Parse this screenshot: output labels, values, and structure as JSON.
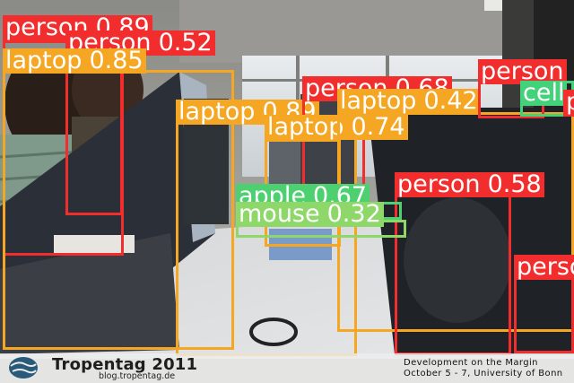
{
  "detections": [
    {
      "cls": "person",
      "conf": "0.89",
      "color": "#f22d2d",
      "kind": "person"
    },
    {
      "cls": "person",
      "conf": "0.52",
      "color": "#f22d2d",
      "kind": "person"
    },
    {
      "cls": "laptop",
      "conf": "0.85",
      "color": "#f5a623",
      "kind": "laptop"
    },
    {
      "cls": "laptop",
      "conf": "0.89",
      "color": "#f5a623",
      "kind": "laptop"
    },
    {
      "cls": "person",
      "conf": "0.68",
      "color": "#f22d2d",
      "kind": "person"
    },
    {
      "cls": "laptop",
      "conf": "0.74",
      "color": "#f5a623",
      "kind": "laptop"
    },
    {
      "cls": "laptop",
      "conf": "0.42",
      "color": "#f5a623",
      "kind": "laptop"
    },
    {
      "cls": "person",
      "conf": "0.58",
      "color": "#f22d2d",
      "kind": "person"
    },
    {
      "cls": "person",
      "conf": "",
      "color": "#f22d2d",
      "kind": "person"
    },
    {
      "cls": "person",
      "conf": "",
      "color": "#f22d2d",
      "kind": "person"
    },
    {
      "cls": "apple",
      "conf": "0.67",
      "color": "#4cd070",
      "kind": "apple"
    },
    {
      "cls": "mouse",
      "conf": "0.32",
      "color": "#8ed86a",
      "kind": "mouse"
    },
    {
      "cls": "cell",
      "conf": "",
      "color": "#43d17a",
      "kind": "cell"
    },
    {
      "cls": "p",
      "conf": "",
      "color": "#f22d2d",
      "kind": "person"
    }
  ],
  "footer": {
    "brand": "Tropentag 2011",
    "brand_url": "blog.tropentag.de",
    "right_line1": "Development on the Margin",
    "right_line2": "October 5 - 7, University of Bonn"
  }
}
